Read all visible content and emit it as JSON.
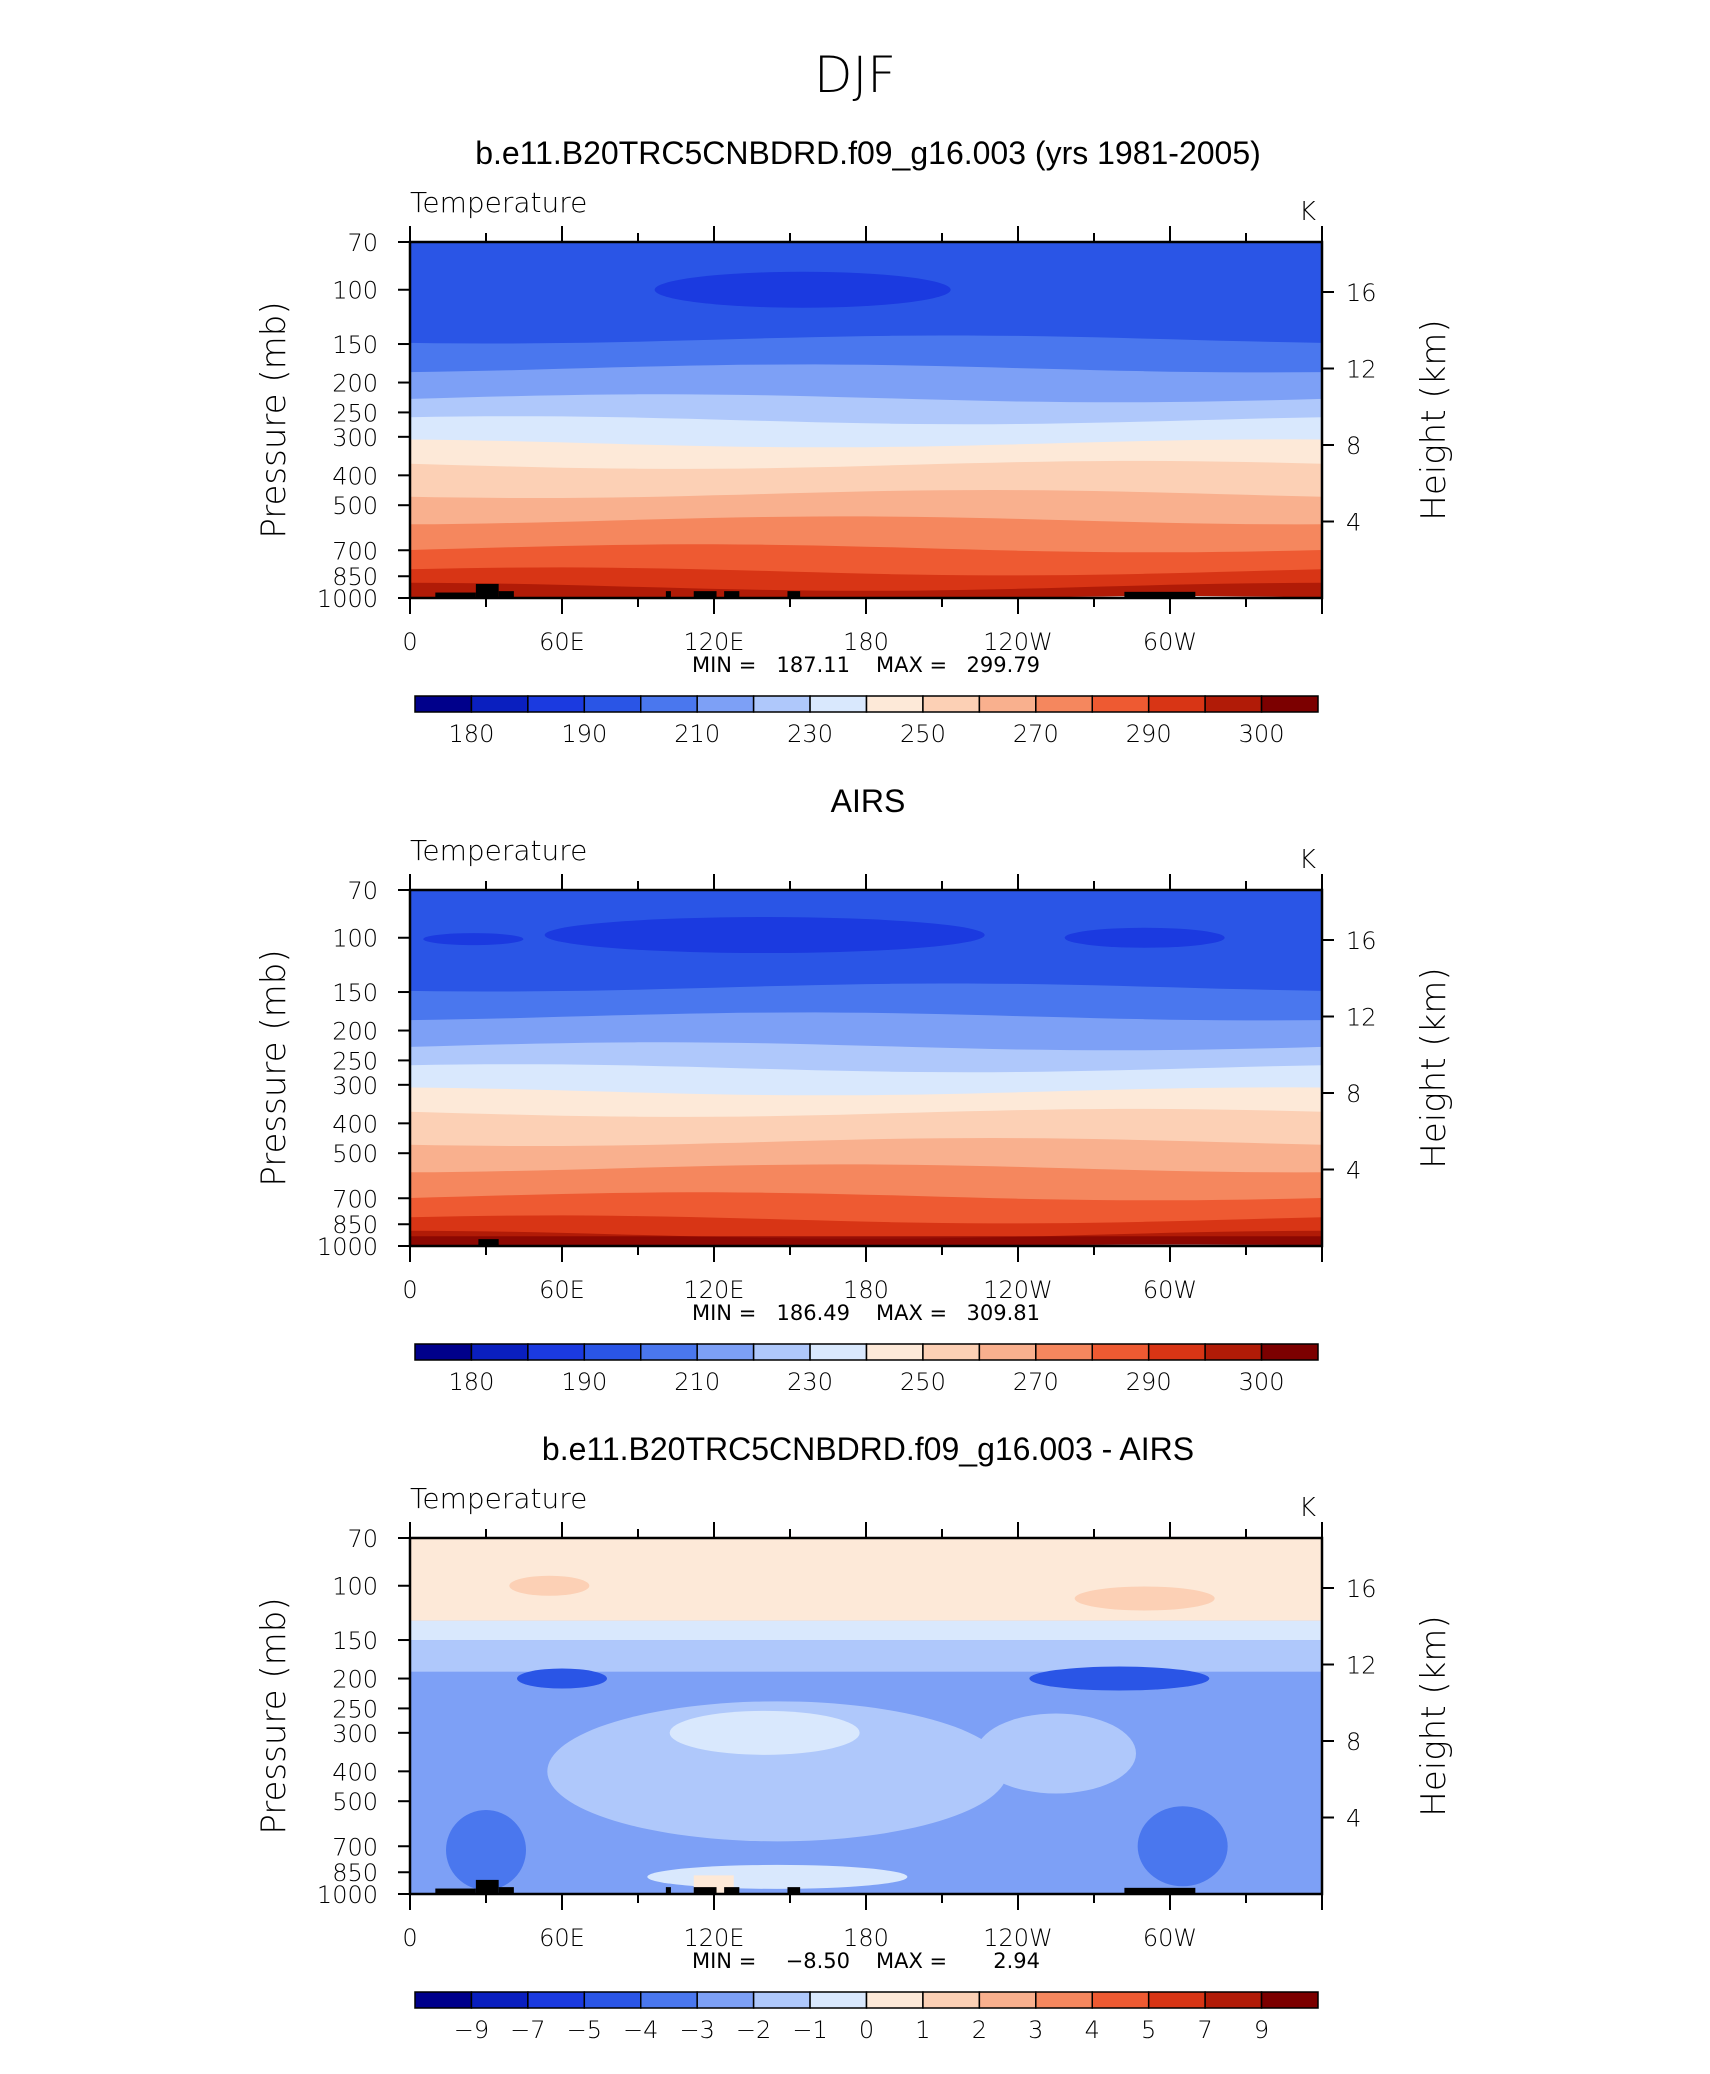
{
  "figure": {
    "title": "DJF"
  },
  "colors": {
    "temp_levels": [
      "#00008b",
      "#0a1fbf",
      "#1b3ae0",
      "#2a55e6",
      "#4a77ee",
      "#7da0f6",
      "#afc8fb",
      "#d9e8fd",
      "#fde9d8",
      "#fcd0b5",
      "#f9b08e",
      "#f5875e",
      "#ee5a32",
      "#d83515",
      "#b11b07",
      "#7c0000"
    ],
    "diff_levels": [
      "#00008b",
      "#0a1fbf",
      "#1b3ae0",
      "#2a55e6",
      "#4a77ee",
      "#7da0f6",
      "#afc8fb",
      "#d9e8fd",
      "#fde9d8",
      "#fcd0b5",
      "#f9b08e",
      "#f5875e",
      "#ee5a32",
      "#d83515",
      "#b11b07",
      "#7c0000"
    ],
    "topography": "#000000"
  },
  "chart_data": [
    {
      "type": "heatmap",
      "title": "b.e11.B20TRC5CNBDRD.f09_g16.003 (yrs 1981-2005)",
      "variable": "Temperature",
      "units": "K",
      "ylabel": "Pressure (mb)",
      "y2label": "Height (km)",
      "x_ticks": [
        "0",
        "60E",
        "120E",
        "180",
        "120W",
        "60W"
      ],
      "y_ticks": [
        "70",
        "100",
        "150",
        "200",
        "250",
        "300",
        "400",
        "500",
        "700",
        "850",
        "1000"
      ],
      "y2_ticks": [
        "16",
        "12",
        "8",
        "4"
      ],
      "min_label": "MIN =",
      "min_value": "187.11",
      "max_label": "MAX =",
      "max_value": "299.79",
      "colorbar_labels": [
        "180",
        "190",
        "210",
        "230",
        "250",
        "270",
        "290",
        "300"
      ],
      "colorbar_levels": [
        175,
        180,
        185,
        190,
        200,
        210,
        220,
        230,
        240,
        250,
        260,
        270,
        280,
        290,
        295,
        300
      ]
    },
    {
      "type": "heatmap",
      "title": "AIRS",
      "variable": "Temperature",
      "units": "K",
      "ylabel": "Pressure (mb)",
      "y2label": "Height (km)",
      "x_ticks": [
        "0",
        "60E",
        "120E",
        "180",
        "120W",
        "60W"
      ],
      "y_ticks": [
        "70",
        "100",
        "150",
        "200",
        "250",
        "300",
        "400",
        "500",
        "700",
        "850",
        "1000"
      ],
      "y2_ticks": [
        "16",
        "12",
        "8",
        "4"
      ],
      "min_label": "MIN =",
      "min_value": "186.49",
      "max_label": "MAX =",
      "max_value": "309.81",
      "colorbar_labels": [
        "180",
        "190",
        "210",
        "230",
        "250",
        "270",
        "290",
        "300"
      ],
      "colorbar_levels": [
        175,
        180,
        185,
        190,
        200,
        210,
        220,
        230,
        240,
        250,
        260,
        270,
        280,
        290,
        295,
        300
      ]
    },
    {
      "type": "heatmap",
      "title": "b.e11.B20TRC5CNBDRD.f09_g16.003 - AIRS",
      "variable": "Temperature",
      "units": "K",
      "ylabel": "Pressure (mb)",
      "y2label": "Height (km)",
      "x_ticks": [
        "0",
        "60E",
        "120E",
        "180",
        "120W",
        "60W"
      ],
      "y_ticks": [
        "70",
        "100",
        "150",
        "200",
        "250",
        "300",
        "400",
        "500",
        "700",
        "850",
        "1000"
      ],
      "y2_ticks": [
        "16",
        "12",
        "8",
        "4"
      ],
      "min_label": "MIN =",
      "min_value": "−8.50",
      "max_label": "MAX =",
      "max_value": "2.94",
      "colorbar_labels": [
        "−9",
        "−7",
        "−5",
        "−4",
        "−3",
        "−2",
        "−1",
        "0",
        "1",
        "2",
        "3",
        "4",
        "5",
        "7",
        "9"
      ],
      "colorbar_levels": [
        -9,
        -7,
        -5,
        -4,
        -3,
        -2,
        -1,
        0,
        1,
        2,
        3,
        4,
        5,
        7,
        9
      ]
    }
  ]
}
